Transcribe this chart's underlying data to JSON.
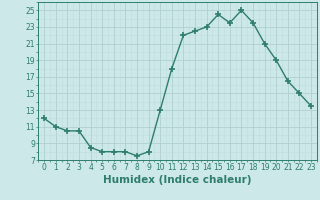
{
  "x": [
    0,
    1,
    2,
    3,
    4,
    5,
    6,
    7,
    8,
    9,
    10,
    11,
    12,
    13,
    14,
    15,
    16,
    17,
    18,
    19,
    20,
    21,
    22,
    23
  ],
  "y": [
    12.0,
    11.0,
    10.5,
    10.5,
    8.5,
    8.0,
    8.0,
    8.0,
    7.5,
    8.0,
    13.0,
    18.0,
    22.0,
    22.5,
    23.0,
    24.5,
    23.5,
    25.0,
    23.5,
    21.0,
    19.0,
    16.5,
    15.0,
    13.5
  ],
  "line_color": "#2e7d6e",
  "marker": "+",
  "marker_size": 4,
  "marker_lw": 1.2,
  "bg_color": "#cce8e8",
  "grid_major_color": "#b0d0d0",
  "grid_minor_color": "#c0dcdc",
  "xlabel": "Humidex (Indice chaleur)",
  "xlabel_fontsize": 7.5,
  "ylabel_ticks": [
    7,
    9,
    11,
    13,
    15,
    17,
    19,
    21,
    23,
    25
  ],
  "xlim": [
    -0.5,
    23.5
  ],
  "ylim": [
    7,
    26
  ],
  "xtick_labels": [
    "0",
    "1",
    "2",
    "3",
    "4",
    "5",
    "6",
    "7",
    "8",
    "9",
    "10",
    "11",
    "12",
    "13",
    "14",
    "15",
    "16",
    "17",
    "18",
    "19",
    "20",
    "21",
    "22",
    "23"
  ],
  "tick_fontsize": 5.5,
  "line_width": 1.0
}
